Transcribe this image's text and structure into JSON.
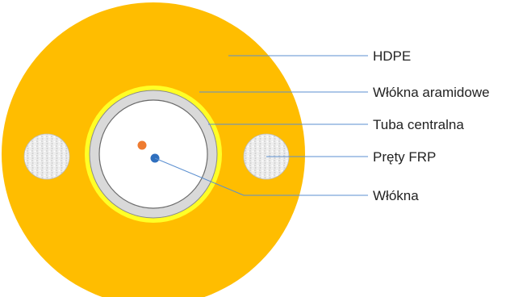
{
  "labels": {
    "hdpe": "HDPE",
    "aramid": "Włókna aramidowe",
    "tube": "Tuba centralna",
    "frp": "Pręty FRP",
    "fibers": "Włókna"
  },
  "colors": {
    "jacket": "#ffbd00",
    "aramid_layer": "#ffff26",
    "tube_ring": "#d9d9d9",
    "tube_inner": "#ffffff",
    "frp_rod": "#e8e8e8",
    "fiber_orange": "#ee7b30",
    "fiber_blue": "#2f6fbe",
    "leader_line": "#5b8fd0",
    "text": "#222222"
  }
}
